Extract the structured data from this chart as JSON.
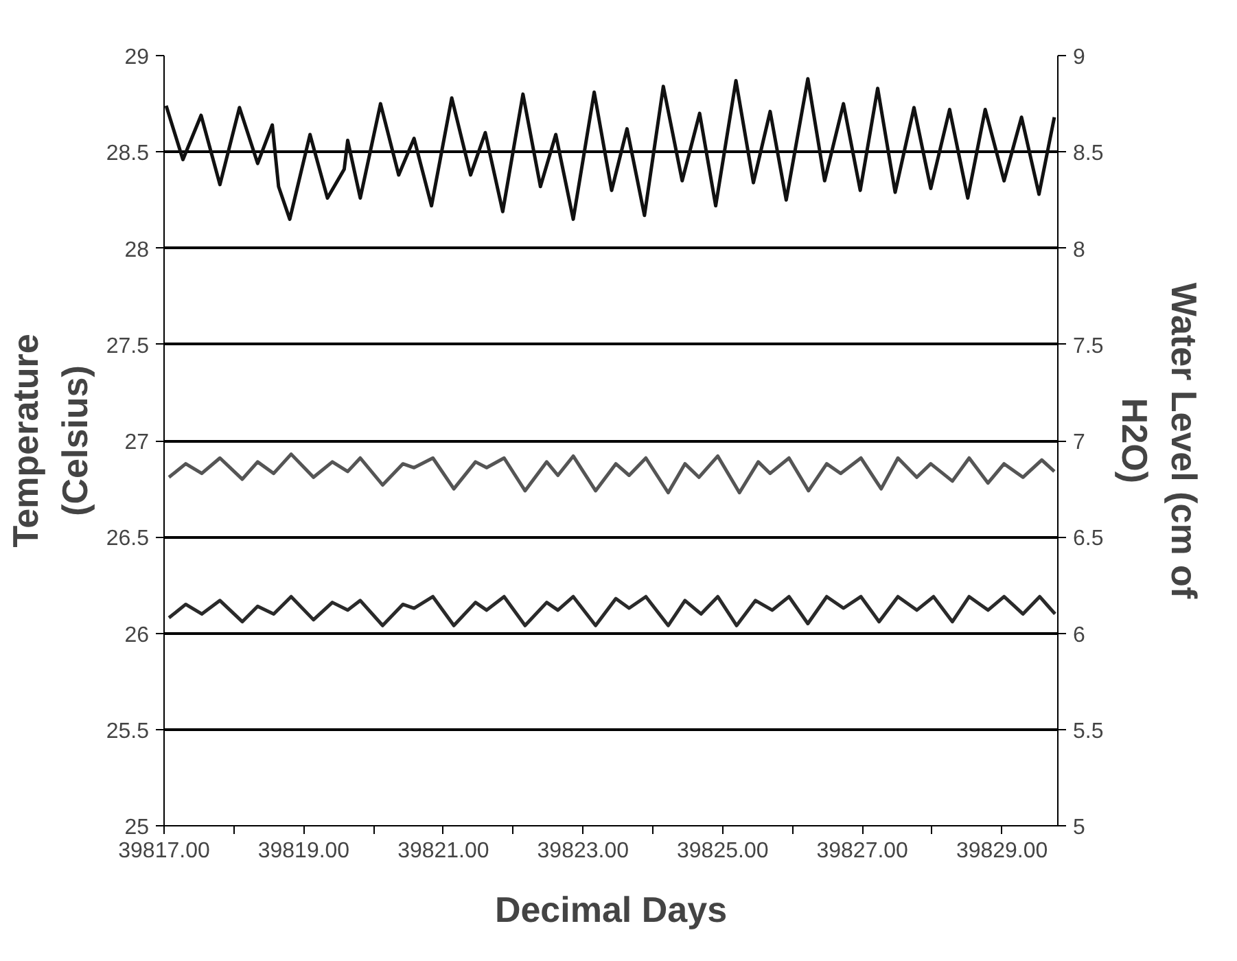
{
  "chart_data": {
    "type": "line",
    "xlabel": "Decimal Days",
    "ylabel": "Temperature (Celsius)",
    "y2label": "Water Level (cm of H2O)",
    "xlim": [
      39817,
      39829.8
    ],
    "ylim": [
      25,
      29
    ],
    "y2lim": [
      5,
      9
    ],
    "xticks": [
      {
        "value": 39817,
        "label": "39817.00"
      },
      {
        "value": 39818,
        "label": null
      },
      {
        "value": 39819,
        "label": "39819.00"
      },
      {
        "value": 39820,
        "label": null
      },
      {
        "value": 39821,
        "label": "39821.00"
      },
      {
        "value": 39822,
        "label": null
      },
      {
        "value": 39823,
        "label": "39823.00"
      },
      {
        "value": 39824,
        "label": null
      },
      {
        "value": 39825,
        "label": "39825.00"
      },
      {
        "value": 39826,
        "label": null
      },
      {
        "value": 39827,
        "label": "39827.00"
      },
      {
        "value": 39828,
        "label": null
      },
      {
        "value": 39829,
        "label": "39829.00"
      }
    ],
    "yticks": [
      25,
      25.5,
      26,
      26.5,
      27,
      27.5,
      28,
      28.5,
      29
    ],
    "y2ticks": [
      5,
      5.5,
      6,
      6.5,
      7,
      7.5,
      8,
      8.5,
      9
    ],
    "grid": "y",
    "marker": "none",
    "line_style": "solid",
    "series": [
      {
        "color": "#111111",
        "x": [
          39817.03,
          39817.27,
          39817.53,
          39817.8,
          39818.08,
          39818.34,
          39818.55,
          39818.64,
          39818.8,
          39819.09,
          39819.34,
          39819.58,
          39819.63,
          39819.81,
          39820.1,
          39820.36,
          39820.58,
          39820.83,
          39821.12,
          39821.39,
          39821.6,
          39821.85,
          39822.14,
          39822.39,
          39822.61,
          39822.86,
          39823.16,
          39823.41,
          39823.63,
          39823.88,
          39824.15,
          39824.42,
          39824.67,
          39824.9,
          39825.19,
          39825.44,
          39825.68,
          39825.91,
          39826.22,
          39826.46,
          39826.73,
          39826.97,
          39827.22,
          39827.47,
          39827.74,
          39827.98,
          39828.25,
          39828.51,
          39828.76,
          39829.03,
          39829.28,
          39829.53,
          39829.75
        ],
        "values": [
          28.74,
          28.46,
          28.69,
          28.33,
          28.73,
          28.44,
          28.64,
          28.32,
          28.15,
          28.59,
          28.26,
          28.41,
          28.56,
          28.26,
          28.75,
          28.38,
          28.57,
          28.22,
          28.78,
          28.38,
          28.6,
          28.19,
          28.8,
          28.32,
          28.59,
          28.15,
          28.81,
          28.3,
          28.62,
          28.17,
          28.84,
          28.35,
          28.7,
          28.22,
          28.87,
          28.34,
          28.71,
          28.25,
          28.88,
          28.35,
          28.75,
          28.3,
          28.83,
          28.29,
          28.73,
          28.31,
          28.72,
          28.26,
          28.72,
          28.35,
          28.68,
          28.28,
          28.68
        ]
      },
      {
        "color": "#555555",
        "x": [
          39817.07,
          39817.31,
          39817.54,
          39817.8,
          39818.12,
          39818.34,
          39818.57,
          39818.82,
          39819.14,
          39819.41,
          39819.63,
          39819.81,
          39820.13,
          39820.42,
          39820.58,
          39820.85,
          39821.15,
          39821.46,
          39821.62,
          39821.87,
          39822.17,
          39822.48,
          39822.64,
          39822.86,
          39823.18,
          39823.47,
          39823.66,
          39823.9,
          39824.22,
          39824.46,
          39824.66,
          39824.93,
          39825.24,
          39825.51,
          39825.68,
          39825.95,
          39826.23,
          39826.49,
          39826.69,
          39826.98,
          39827.27,
          39827.51,
          39827.78,
          39827.98,
          39828.29,
          39828.53,
          39828.8,
          39829.03,
          39829.3,
          39829.57,
          39829.75
        ],
        "values": [
          26.81,
          26.88,
          26.83,
          26.91,
          26.8,
          26.89,
          26.83,
          26.93,
          26.81,
          26.89,
          26.84,
          26.91,
          26.77,
          26.88,
          26.86,
          26.91,
          26.75,
          26.89,
          26.86,
          26.91,
          26.74,
          26.89,
          26.82,
          26.92,
          26.74,
          26.88,
          26.82,
          26.91,
          26.73,
          26.88,
          26.81,
          26.92,
          26.73,
          26.89,
          26.83,
          26.91,
          26.74,
          26.88,
          26.83,
          26.91,
          26.75,
          26.91,
          26.81,
          26.88,
          26.79,
          26.91,
          26.78,
          26.88,
          26.81,
          26.9,
          26.84
        ]
      },
      {
        "color": "#2a2a2a",
        "x": [
          39817.07,
          39817.31,
          39817.54,
          39817.8,
          39818.12,
          39818.34,
          39818.57,
          39818.82,
          39819.14,
          39819.41,
          39819.63,
          39819.81,
          39820.13,
          39820.42,
          39820.58,
          39820.85,
          39821.15,
          39821.46,
          39821.62,
          39821.87,
          39822.17,
          39822.48,
          39822.64,
          39822.86,
          39823.18,
          39823.47,
          39823.66,
          39823.9,
          39824.22,
          39824.46,
          39824.69,
          39824.93,
          39825.2,
          39825.47,
          39825.71,
          39825.95,
          39826.22,
          39826.49,
          39826.73,
          39826.98,
          39827.24,
          39827.51,
          39827.78,
          39828.02,
          39828.29,
          39828.53,
          39828.8,
          39829.03,
          39829.3,
          39829.54,
          39829.76
        ],
        "values": [
          26.08,
          26.15,
          26.1,
          26.17,
          26.06,
          26.14,
          26.1,
          26.19,
          26.07,
          26.16,
          26.12,
          26.17,
          26.04,
          26.15,
          26.13,
          26.19,
          26.04,
          26.16,
          26.12,
          26.19,
          26.04,
          26.16,
          26.12,
          26.19,
          26.04,
          26.18,
          26.13,
          26.19,
          26.04,
          26.17,
          26.1,
          26.19,
          26.04,
          26.17,
          26.12,
          26.19,
          26.05,
          26.19,
          26.13,
          26.19,
          26.06,
          26.19,
          26.12,
          26.19,
          26.06,
          26.19,
          26.12,
          26.19,
          26.1,
          26.19,
          26.1
        ]
      }
    ]
  }
}
